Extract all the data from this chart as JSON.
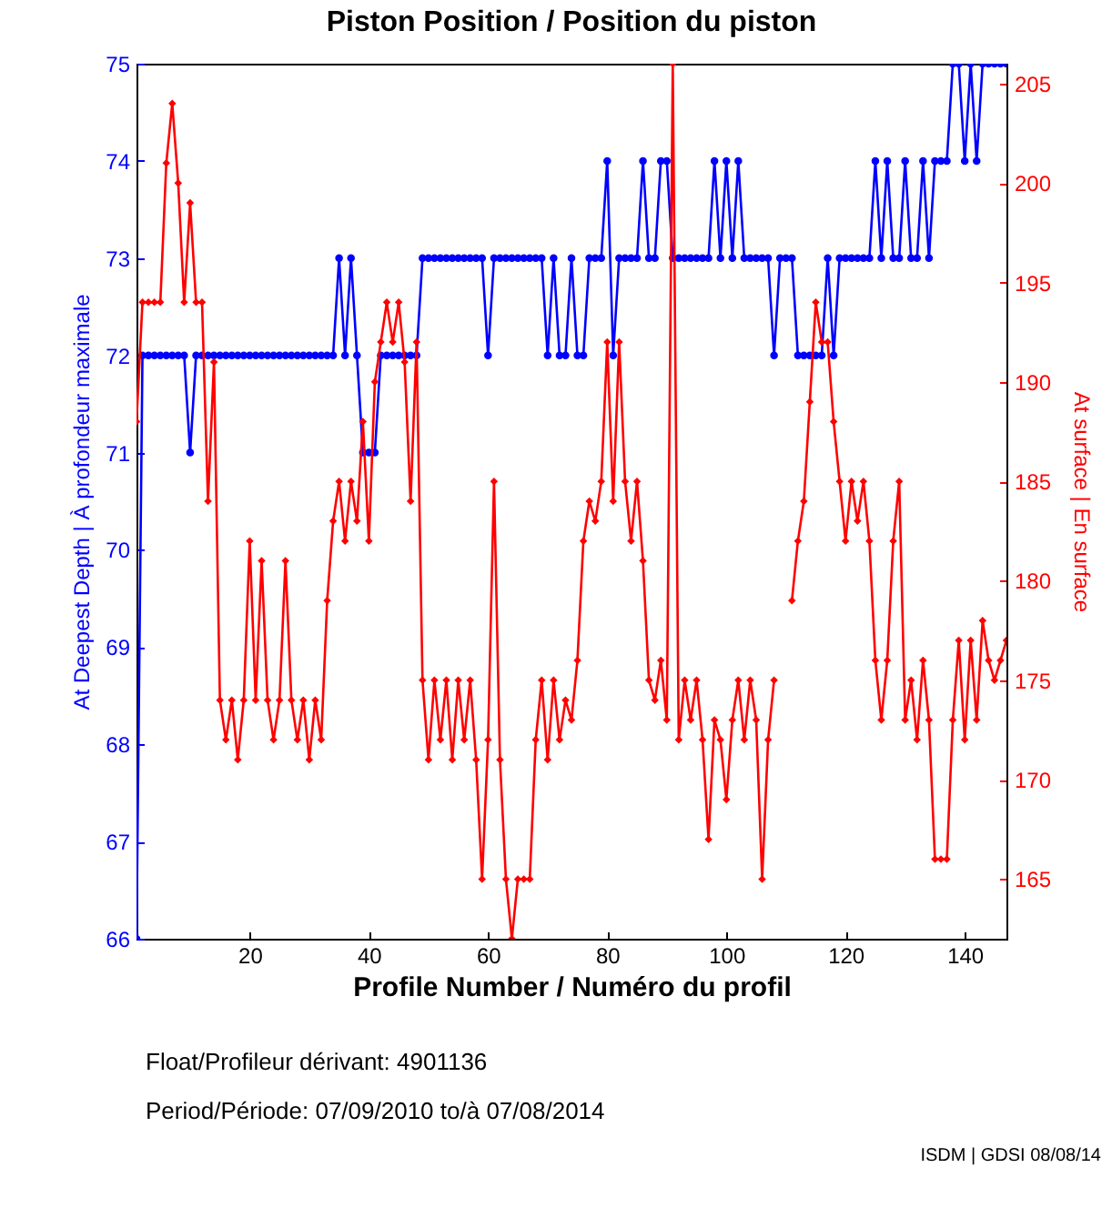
{
  "chart_data": {
    "type": "line",
    "title": "Piston Position / Position du piston",
    "xlabel": "Profile Number / Numéro du profil",
    "ylabel": "At Deepest Depth | À profondeur maximale",
    "y2label": "At surface | En surface",
    "x": [
      1,
      2,
      3,
      4,
      5,
      6,
      7,
      8,
      9,
      10,
      11,
      12,
      13,
      14,
      15,
      16,
      17,
      18,
      19,
      20,
      21,
      22,
      23,
      24,
      25,
      26,
      27,
      28,
      29,
      30,
      31,
      32,
      33,
      34,
      35,
      36,
      37,
      38,
      39,
      40,
      41,
      42,
      43,
      44,
      45,
      46,
      47,
      48,
      49,
      50,
      51,
      52,
      53,
      54,
      55,
      56,
      57,
      58,
      59,
      60,
      61,
      62,
      63,
      64,
      65,
      66,
      67,
      68,
      69,
      70,
      71,
      72,
      73,
      74,
      75,
      76,
      77,
      78,
      79,
      80,
      81,
      82,
      83,
      84,
      85,
      86,
      87,
      88,
      89,
      90,
      91,
      92,
      93,
      94,
      95,
      96,
      97,
      98,
      99,
      100,
      101,
      102,
      103,
      104,
      105,
      106,
      107,
      108,
      109,
      110,
      111,
      112,
      113,
      114,
      115,
      116,
      117,
      118,
      119,
      120,
      121,
      122,
      123,
      124,
      125,
      126,
      127,
      128,
      129,
      130,
      131,
      132,
      133,
      134,
      135,
      136,
      137,
      138,
      139,
      140,
      141,
      142,
      143,
      144,
      145,
      146,
      147
    ],
    "series": [
      {
        "color": "#0000ff",
        "marker": "circle",
        "values": [
          66,
          72,
          72,
          72,
          72,
          72,
          72,
          72,
          72,
          71,
          72,
          72,
          72,
          72,
          72,
          72,
          72,
          72,
          72,
          72,
          72,
          72,
          72,
          72,
          72,
          72,
          72,
          72,
          72,
          72,
          72,
          72,
          72,
          72,
          73,
          72,
          73,
          72,
          71,
          71,
          71,
          72,
          72,
          72,
          72,
          72,
          72,
          72,
          73,
          73,
          73,
          73,
          73,
          73,
          73,
          73,
          73,
          73,
          73,
          72,
          73,
          73,
          73,
          73,
          73,
          73,
          73,
          73,
          73,
          72,
          73,
          72,
          72,
          73,
          72,
          72,
          73,
          73,
          73,
          74,
          72,
          73,
          73,
          73,
          73,
          74,
          73,
          73,
          74,
          74,
          73,
          73,
          73,
          73,
          73,
          73,
          73,
          74,
          73,
          74,
          73,
          74,
          73,
          73,
          73,
          73,
          73,
          72,
          73,
          73,
          73,
          72,
          72,
          72,
          72,
          72,
          73,
          72,
          73,
          73,
          73,
          73,
          73,
          73,
          74,
          73,
          74,
          73,
          73,
          74,
          73,
          73,
          74,
          73,
          74,
          74,
          74,
          75,
          75,
          74,
          75,
          74,
          75,
          75,
          75,
          75,
          75
        ]
      },
      {
        "color": "#ff0000",
        "marker": "diamond",
        "axis": "y2",
        "values": [
          188,
          194,
          194,
          194,
          194,
          201,
          204,
          200,
          194,
          199,
          194,
          194,
          184,
          191,
          174,
          172,
          174,
          171,
          174,
          182,
          174,
          181,
          174,
          172,
          174,
          181,
          174,
          172,
          174,
          171,
          174,
          172,
          179,
          183,
          185,
          182,
          185,
          183,
          188,
          182,
          190,
          192,
          194,
          192,
          194,
          191,
          184,
          192,
          175,
          171,
          175,
          172,
          175,
          171,
          175,
          172,
          175,
          171,
          165,
          172,
          185,
          171,
          165,
          162,
          165,
          165,
          165,
          172,
          175,
          171,
          175,
          172,
          174,
          173,
          176,
          182,
          184,
          183,
          185,
          192,
          184,
          192,
          185,
          182,
          185,
          181,
          175,
          174,
          176,
          173,
          206,
          172,
          175,
          173,
          175,
          172,
          167,
          173,
          172,
          169,
          173,
          175,
          172,
          175,
          173,
          165,
          172,
          175,
          null,
          null,
          179,
          182,
          184,
          189,
          194,
          192,
          192,
          188,
          185,
          182,
          185,
          183,
          185,
          182,
          176,
          173,
          176,
          182,
          185,
          173,
          175,
          172,
          176,
          173,
          166,
          166,
          166,
          173,
          177,
          172,
          177,
          173,
          178,
          176,
          175,
          176,
          177
        ]
      }
    ],
    "xlim": [
      1,
      147
    ],
    "xticks": [
      20,
      40,
      60,
      80,
      100,
      120,
      140
    ],
    "ylim": [
      66,
      75
    ],
    "yticks": [
      66,
      67,
      68,
      69,
      70,
      71,
      72,
      73,
      74,
      75
    ],
    "y2lim": [
      162,
      206
    ],
    "y2ticks": [
      165,
      170,
      175,
      180,
      185,
      190,
      195,
      200,
      205
    ],
    "annotations": [
      "Float/Profileur dérivant: 4901136",
      "Period/Période: 07/09/2010 to/à 07/08/2014",
      "ISDM | GDSI 08/08/14"
    ]
  }
}
